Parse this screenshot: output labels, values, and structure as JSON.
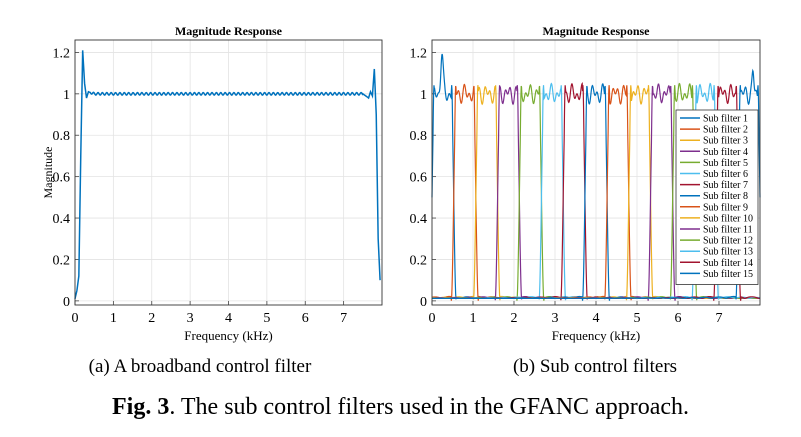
{
  "chart_data": [
    {
      "type": "line",
      "title": "Magnitude Response",
      "xlabel": "Frequency (kHz)",
      "ylabel": "Magnitude",
      "xlim": [
        0,
        8
      ],
      "ylim": [
        -0.02,
        1.26
      ],
      "xticks": [
        "0",
        "1",
        "2",
        "3",
        "4",
        "5",
        "6",
        "7"
      ],
      "yticks": [
        "0",
        "0.2",
        "0.4",
        "0.6",
        "0.8",
        "1",
        "1.2"
      ],
      "grid": true,
      "series": [
        {
          "color": "#0072BD",
          "x": [
            0,
            0.05,
            0.1,
            0.15,
            0.2,
            0.25,
            0.3,
            0.35,
            0.5,
            1,
            2,
            3,
            4,
            5,
            6,
            7,
            7.5,
            7.65,
            7.7,
            7.75,
            7.8,
            7.85,
            7.9,
            7.95
          ],
          "y": [
            0.01,
            0.05,
            0.12,
            0.7,
            1.21,
            1.05,
            0.98,
            1.01,
            1.0,
            1.0,
            1.0,
            1.0,
            1.0,
            1.0,
            1.0,
            1.0,
            1.0,
            0.98,
            1.01,
            0.99,
            1.12,
            0.9,
            0.3,
            0.1
          ]
        }
      ]
    },
    {
      "type": "line",
      "title": "Magnitude Response",
      "xlabel": "Frequency (kHz)",
      "ylabel": "",
      "xlim": [
        0,
        8
      ],
      "ylim": [
        -0.02,
        1.26
      ],
      "xticks": [
        "0",
        "1",
        "2",
        "3",
        "4",
        "5",
        "6",
        "7"
      ],
      "yticks": [
        "0",
        "0.2",
        "0.4",
        "0.6",
        "0.8",
        "1",
        "1.2"
      ],
      "grid": true,
      "legend": "right",
      "series": [
        {
          "name": "Sub filter 1",
          "color": "#0072BD",
          "band": [
            0,
            0.53
          ]
        },
        {
          "name": "Sub filter 2",
          "color": "#D95319",
          "band": [
            0.53,
            1.07
          ]
        },
        {
          "name": "Sub filter 3",
          "color": "#EDB120",
          "band": [
            1.07,
            1.6
          ]
        },
        {
          "name": "Sub filter 4",
          "color": "#7E2F8E",
          "band": [
            1.6,
            2.13
          ]
        },
        {
          "name": "Sub filter 5",
          "color": "#77AC30",
          "band": [
            2.13,
            2.67
          ]
        },
        {
          "name": "Sub filter 6",
          "color": "#4DBEEE",
          "band": [
            2.67,
            3.2
          ]
        },
        {
          "name": "Sub filter 7",
          "color": "#A2142F",
          "band": [
            3.2,
            3.73
          ]
        },
        {
          "name": "Sub filter 8",
          "color": "#0072BD",
          "band": [
            3.73,
            4.27
          ]
        },
        {
          "name": "Sub filter 9",
          "color": "#D95319",
          "band": [
            4.27,
            4.8
          ]
        },
        {
          "name": "Sub filter 10",
          "color": "#EDB120",
          "band": [
            4.8,
            5.33
          ]
        },
        {
          "name": "Sub filter 11",
          "color": "#7E2F8E",
          "band": [
            5.33,
            5.87
          ]
        },
        {
          "name": "Sub filter 12",
          "color": "#77AC30",
          "band": [
            5.87,
            6.4
          ]
        },
        {
          "name": "Sub filter 13",
          "color": "#4DBEEE",
          "band": [
            6.4,
            6.93
          ]
        },
        {
          "name": "Sub filter 14",
          "color": "#A2142F",
          "band": [
            6.93,
            7.47
          ]
        },
        {
          "name": "Sub filter 15",
          "color": "#0072BD",
          "band": [
            7.47,
            8.0
          ]
        }
      ]
    }
  ],
  "captions": {
    "sub_a": "(a)  A broadband control filter",
    "sub_b": "(b)  Sub control filters",
    "figure_label": "Fig. 3",
    "figure_text": ". The sub control filters used in the GFANC approach."
  }
}
